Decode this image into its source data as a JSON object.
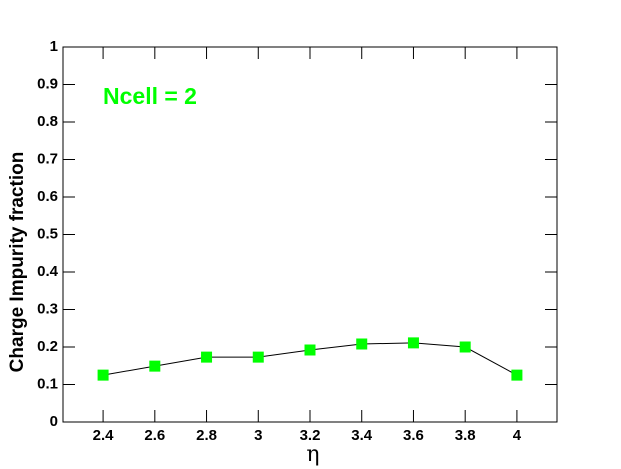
{
  "chart_data": {
    "type": "line",
    "annotation": "Ncell = 2",
    "x_label": "η",
    "y_label": "Charge Impurity fraction",
    "x": [
      2.4,
      2.6,
      2.8,
      3.0,
      3.2,
      3.4,
      3.6,
      3.8,
      4.0
    ],
    "series": [
      {
        "name": "Ncell = 2",
        "color": "#00ff00",
        "values": [
          0.125,
          0.149,
          0.173,
          0.173,
          0.192,
          0.208,
          0.211,
          0.2,
          0.125
        ]
      }
    ],
    "xlim": [
      2.245,
      4.155
    ],
    "ylim": [
      0,
      1
    ],
    "xticks": [
      2.4,
      2.6,
      2.8,
      3,
      3.2,
      3.4,
      3.6,
      3.8,
      4
    ],
    "yticks": [
      0,
      0.1,
      0.2,
      0.3,
      0.4,
      0.5,
      0.6,
      0.7,
      0.8,
      0.9,
      1
    ]
  }
}
